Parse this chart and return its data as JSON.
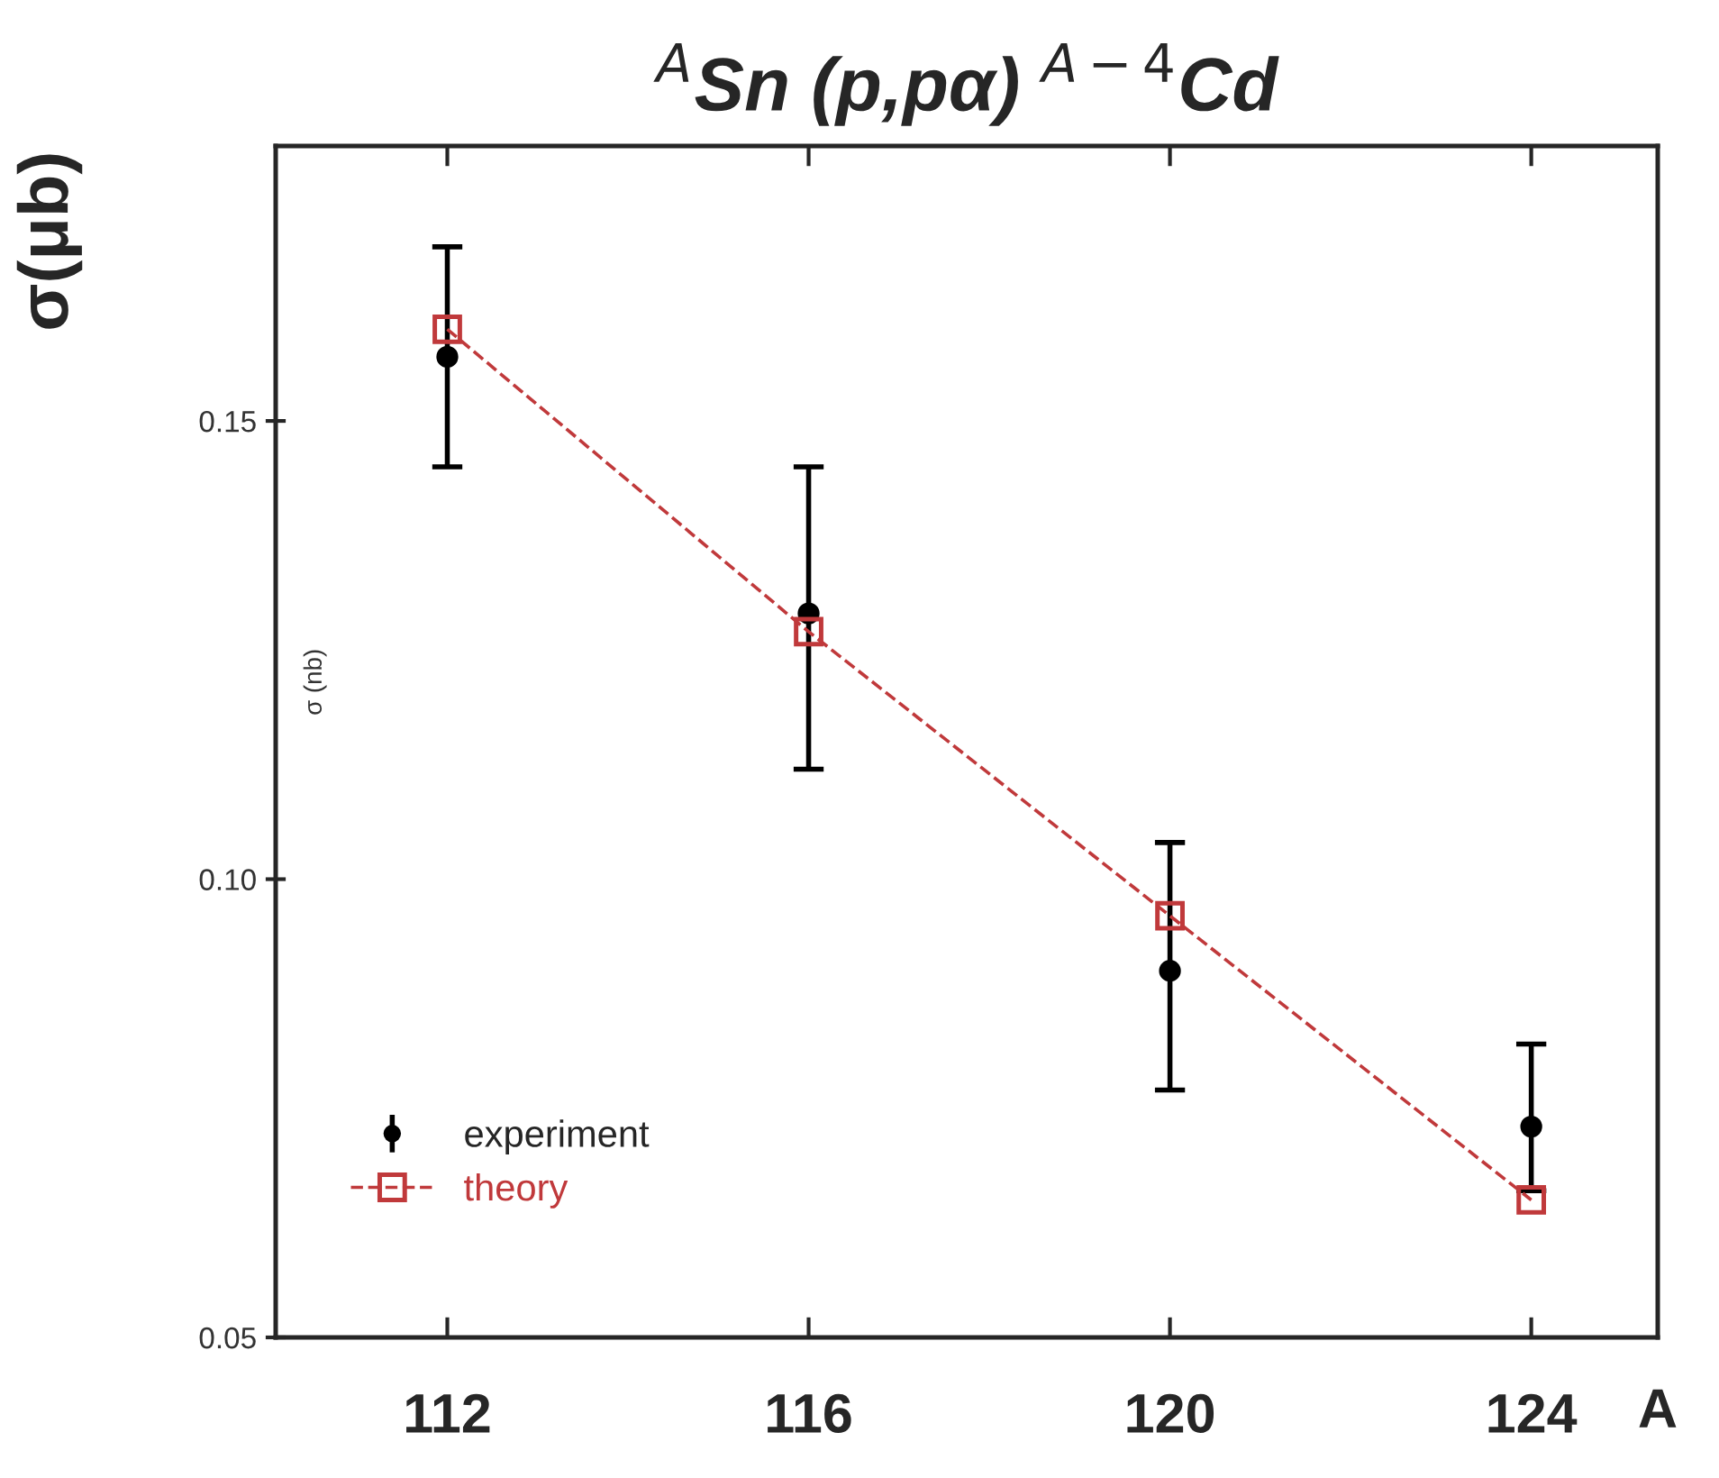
{
  "chart_data": {
    "type": "scatter",
    "title": "$^{A}$Sn (p,pα) $^{A−4}$Cd",
    "ylabel": "σ(μb)",
    "xlabel": "A",
    "annotations": [
      "σ (nb)"
    ],
    "series": [
      {
        "name": "experiment",
        "color": "#000000",
        "marker": "circle",
        "x": [
          112,
          116,
          120,
          124
        ],
        "values": [
          0.157,
          0.129,
          0.09,
          0.073
        ],
        "errors": [
          [
            0.145,
            0.169
          ],
          [
            0.112,
            0.145
          ],
          [
            0.077,
            0.104
          ],
          [
            0.066,
            0.082
          ]
        ]
      },
      {
        "name": "theory",
        "type": "line",
        "color": "#c0393b",
        "marker": "square",
        "line_style": "dashed",
        "x": [
          112,
          116,
          120,
          124
        ],
        "values": [
          0.16,
          0.127,
          0.096,
          0.065
        ]
      }
    ],
    "xlim": [
      110.1,
      125.4
    ],
    "xticks": [
      112,
      116,
      120,
      124
    ],
    "ylim": [
      0.05,
      0.18
    ],
    "yticks": [
      {
        "value": 0.05,
        "label": "0.05"
      },
      {
        "value": 0.1,
        "label": "0.10"
      },
      {
        "value": 0.15,
        "label": "0.15"
      }
    ],
    "legend": "bottom left",
    "grid": false
  }
}
